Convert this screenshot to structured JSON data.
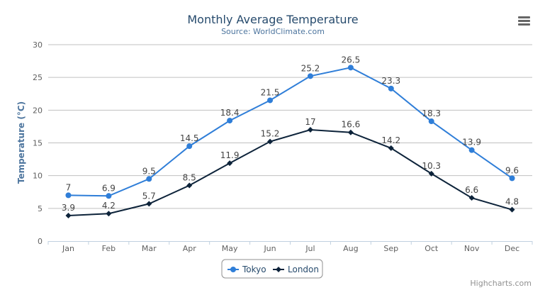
{
  "chart_data": {
    "type": "line",
    "title": "Monthly Average Temperature",
    "subtitle": "Source: WorldClimate.com",
    "xlabel": "",
    "ylabel": "Temperature (°C)",
    "categories": [
      "Jan",
      "Feb",
      "Mar",
      "Apr",
      "May",
      "Jun",
      "Jul",
      "Aug",
      "Sep",
      "Oct",
      "Nov",
      "Dec"
    ],
    "ylim": [
      0,
      30
    ],
    "yticks": [
      0,
      5,
      10,
      15,
      20,
      25,
      30
    ],
    "grid": true,
    "legend_position": "bottom-center",
    "data_labels": true,
    "series": [
      {
        "name": "Tokyo",
        "color": "#2f7ed8",
        "marker": "circle",
        "values": [
          7.0,
          6.9,
          9.5,
          14.5,
          18.4,
          21.5,
          25.2,
          26.5,
          23.3,
          18.3,
          13.9,
          9.6
        ]
      },
      {
        "name": "London",
        "color": "#0d233a",
        "marker": "diamond",
        "values": [
          3.9,
          4.2,
          5.7,
          8.5,
          11.9,
          15.2,
          17.0,
          16.6,
          14.2,
          10.3,
          6.6,
          4.8
        ]
      }
    ]
  },
  "credits": "Highcharts.com",
  "menu_icon": "hamburger-menu-icon"
}
